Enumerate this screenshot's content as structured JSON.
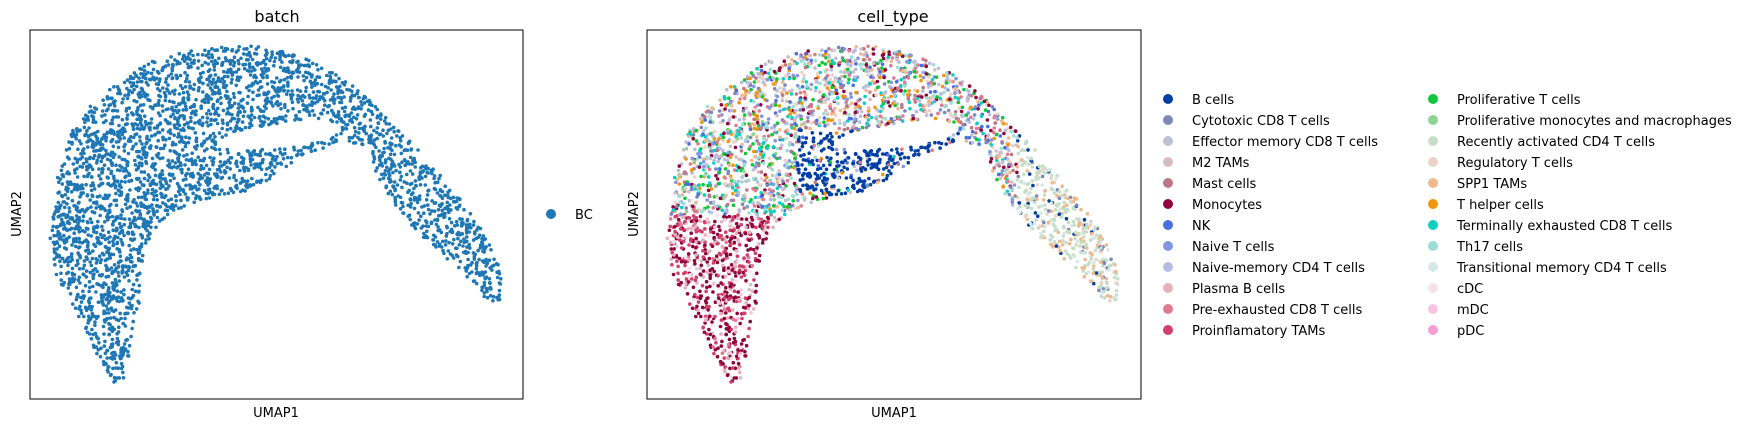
{
  "chart_data": [
    {
      "type": "scatter",
      "title": "batch",
      "xlabel": "UMAP1",
      "ylabel": "UMAP2",
      "xticks": [],
      "yticks": [],
      "grid": false,
      "legend_position": "right",
      "legend": [
        {
          "label": "BC",
          "color": "#1f77b4"
        }
      ],
      "points_color": "#1f77b4"
    },
    {
      "type": "scatter",
      "title": "cell_type",
      "xlabel": "UMAP1",
      "ylabel": "UMAP2",
      "xticks": [],
      "yticks": [],
      "grid": false,
      "legend_position": "right",
      "legend_columns": 2,
      "legend": [
        {
          "label": "B cells",
          "color": "#023fa5"
        },
        {
          "label": "Cytotoxic CD8 T cells",
          "color": "#7d87b9"
        },
        {
          "label": "Effector memory CD8 T cells",
          "color": "#bec1d4"
        },
        {
          "label": "M2 TAMs",
          "color": "#d6bcc0"
        },
        {
          "label": "Mast cells",
          "color": "#bb7784"
        },
        {
          "label": "Monocytes",
          "color": "#8e063b"
        },
        {
          "label": "NK",
          "color": "#4a6fe3"
        },
        {
          "label": "Naive T cells",
          "color": "#8595e1"
        },
        {
          "label": "Naive-memory CD4 T cells",
          "color": "#b5bbe3"
        },
        {
          "label": "Plasma B cells",
          "color": "#e6afb9"
        },
        {
          "label": "Pre-exhausted CD8 T cells",
          "color": "#e07b91"
        },
        {
          "label": "Proinflamatory TAMs",
          "color": "#d33f6a"
        },
        {
          "label": "Proliferative T cells",
          "color": "#11c638"
        },
        {
          "label": "Proliferative monocytes and macrophages",
          "color": "#8dd593"
        },
        {
          "label": "Recently activated CD4 T cells",
          "color": "#c6dec7"
        },
        {
          "label": "Regulatory T cells",
          "color": "#ead3c6"
        },
        {
          "label": "SPP1 TAMs",
          "color": "#f0b98d"
        },
        {
          "label": "T helper cells",
          "color": "#ef9708"
        },
        {
          "label": "Terminally exhausted CD8 T cells",
          "color": "#0fcfc0"
        },
        {
          "label": "Th17 cells",
          "color": "#9cded6"
        },
        {
          "label": "Transitional memory CD4 T cells",
          "color": "#d5eae7"
        },
        {
          "label": "cDC",
          "color": "#f3e1eb"
        },
        {
          "label": "mDC",
          "color": "#f6c4e1"
        },
        {
          "label": "pDC",
          "color": "#f79cd4"
        }
      ]
    }
  ]
}
